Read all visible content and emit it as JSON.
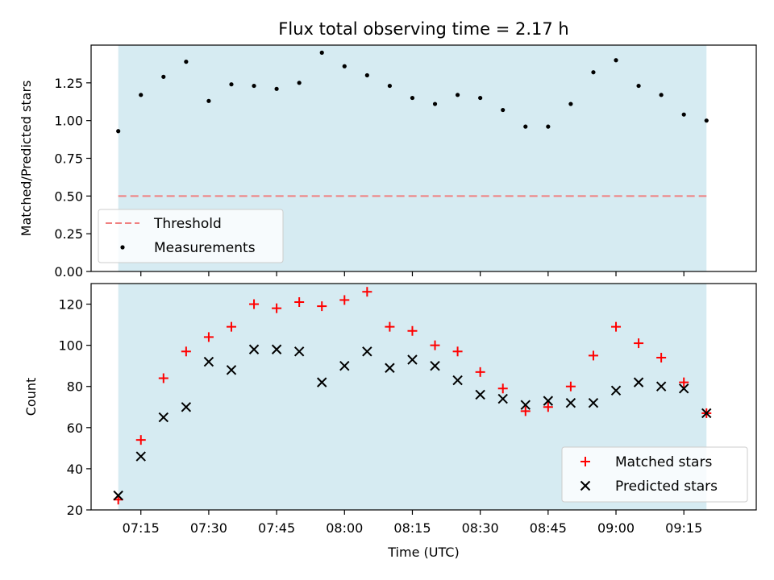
{
  "chart_data": [
    {
      "type": "scatter",
      "title": "Flux total observing time = 2.17 h",
      "xlabel": "",
      "ylabel": "Matched/Predicted stars",
      "ylim": [
        0.0,
        1.5
      ],
      "yticks": [
        "0.00",
        "0.25",
        "0.50",
        "0.75",
        "1.00",
        "1.25"
      ],
      "ytick_values": [
        0.0,
        0.25,
        0.5,
        0.75,
        1.0,
        1.25
      ],
      "shaded_range": [
        "07:10",
        "09:20"
      ],
      "shade_color": "#add8e6",
      "threshold": {
        "name": "Threshold",
        "value": 0.5,
        "color": "#f08080"
      },
      "legend_position": "lower-left",
      "series": [
        {
          "name": "Measurements",
          "marker": "dot",
          "color": "#000000",
          "x": [
            "07:10",
            "07:15",
            "07:20",
            "07:25",
            "07:30",
            "07:35",
            "07:40",
            "07:45",
            "07:50",
            "07:55",
            "08:00",
            "08:05",
            "08:10",
            "08:15",
            "08:20",
            "08:25",
            "08:30",
            "08:35",
            "08:40",
            "08:45",
            "08:50",
            "08:55",
            "09:00",
            "09:05",
            "09:10",
            "09:15",
            "09:20"
          ],
          "values": [
            0.93,
            1.17,
            1.29,
            1.39,
            1.13,
            1.24,
            1.23,
            1.21,
            1.25,
            1.45,
            1.36,
            1.3,
            1.23,
            1.15,
            1.11,
            1.17,
            1.15,
            1.07,
            0.96,
            0.96,
            1.11,
            1.32,
            1.4,
            1.23,
            1.17,
            1.04,
            1.0
          ]
        }
      ]
    },
    {
      "type": "scatter",
      "title": "",
      "xlabel": "Time (UTC)",
      "ylabel": "Count",
      "ylim": [
        20,
        130
      ],
      "yticks": [
        "20",
        "40",
        "60",
        "80",
        "100",
        "120"
      ],
      "ytick_values": [
        20,
        40,
        60,
        80,
        100,
        120
      ],
      "xticks": [
        "07:15",
        "07:30",
        "07:45",
        "08:00",
        "08:15",
        "08:30",
        "08:45",
        "09:00",
        "09:15"
      ],
      "xlim": [
        "07:04",
        "09:31"
      ],
      "shaded_range": [
        "07:10",
        "09:20"
      ],
      "shade_color": "#add8e6",
      "legend_position": "lower-right",
      "series": [
        {
          "name": "Matched stars",
          "marker": "plus",
          "color": "#ff0000",
          "x": [
            "07:10",
            "07:15",
            "07:20",
            "07:25",
            "07:30",
            "07:35",
            "07:40",
            "07:45",
            "07:50",
            "07:55",
            "08:00",
            "08:05",
            "08:10",
            "08:15",
            "08:20",
            "08:25",
            "08:30",
            "08:35",
            "08:40",
            "08:45",
            "08:50",
            "08:55",
            "09:00",
            "09:05",
            "09:10",
            "09:15",
            "09:20"
          ],
          "values": [
            25,
            54,
            84,
            97,
            104,
            109,
            120,
            118,
            121,
            119,
            122,
            126,
            109,
            107,
            100,
            97,
            87,
            79,
            68,
            70,
            80,
            95,
            109,
            101,
            94,
            82,
            67
          ]
        },
        {
          "name": "Predicted stars",
          "marker": "x",
          "color": "#000000",
          "x": [
            "07:10",
            "07:15",
            "07:20",
            "07:25",
            "07:30",
            "07:35",
            "07:40",
            "07:45",
            "07:50",
            "07:55",
            "08:00",
            "08:05",
            "08:10",
            "08:15",
            "08:20",
            "08:25",
            "08:30",
            "08:35",
            "08:40",
            "08:45",
            "08:50",
            "08:55",
            "09:00",
            "09:05",
            "09:10",
            "09:15",
            "09:20"
          ],
          "values": [
            27,
            46,
            65,
            70,
            92,
            88,
            98,
            98,
            97,
            82,
            90,
            97,
            89,
            93,
            90,
            83,
            76,
            74,
            71,
            73,
            72,
            72,
            78,
            82,
            80,
            79,
            67
          ]
        }
      ]
    }
  ]
}
